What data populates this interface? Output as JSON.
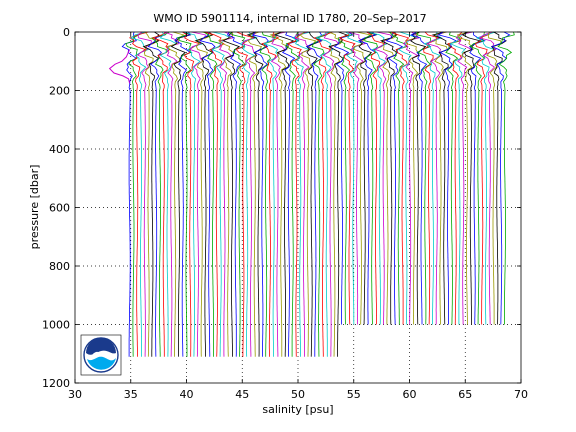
{
  "chart_data": {
    "type": "line",
    "title": "WMO ID 5901114, internal ID 1780, 20–Sep–2017",
    "xlabel": "salinity [psu]",
    "ylabel": "pressure [dbar]",
    "xlim": [
      30,
      70
    ],
    "ylim": [
      0,
      1200
    ],
    "y_reversed": true,
    "x_ticks": [
      "30",
      "35",
      "40",
      "45",
      "50",
      "55",
      "60",
      "65",
      "70"
    ],
    "y_ticks": [
      "0",
      "200",
      "400",
      "600",
      "800",
      "1000",
      "1200"
    ],
    "grid": "dotted",
    "profile_count": 100,
    "profile_start_salinity": 34.9,
    "profile_step_salinity": 0.34,
    "profile_colors": [
      "#0000ff",
      "#00aa00",
      "#ff0000",
      "#00cccc",
      "#cc00cc",
      "#999900",
      "#000000"
    ],
    "deep_pressure_early": 1110,
    "deep_pressure_late": 1000,
    "reference_profile": {
      "color": "#cc00cc",
      "salinity": [
        34.9,
        34.6,
        34.2,
        33.6,
        33.1,
        33.5,
        34.3,
        34.8,
        34.9
      ],
      "pressure": [
        60,
        85,
        100,
        110,
        125,
        140,
        150,
        160,
        175
      ]
    }
  },
  "logo": {
    "label": "NOAA",
    "colors": [
      "#1a3a8c",
      "#00aaee",
      "#ffffff"
    ]
  }
}
